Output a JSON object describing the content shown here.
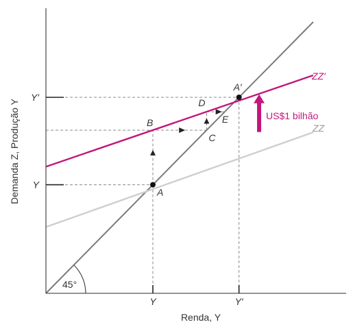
{
  "colors": {
    "axis": "#555555",
    "diag": "#7b7b7b",
    "zz": "#cfcfca",
    "zzp": "#c2177b",
    "dash": "#888888",
    "marker": "#222222"
  },
  "chart_data": {
    "type": "line",
    "xlabel": "Renda, Y",
    "ylabel": "Demanda Z, Produção Y",
    "xlim": [
      0,
      100
    ],
    "ylim": [
      0,
      100
    ],
    "xticks": [
      {
        "value": 36,
        "label": "Y"
      },
      {
        "value": 65,
        "label": "Y′"
      }
    ],
    "yticks": [
      {
        "value": 36,
        "label": "Y"
      },
      {
        "value": 65,
        "label": "Y′"
      }
    ],
    "series": [
      {
        "name": "",
        "role": "diagonal",
        "x": [
          0,
          90
        ],
        "y": [
          0,
          90
        ]
      },
      {
        "name": "ZZ",
        "x": [
          0,
          90
        ],
        "y": [
          22,
          53.4
        ]
      },
      {
        "name": "ZZ′",
        "x": [
          0,
          90
        ],
        "y": [
          42,
          72.3
        ]
      }
    ],
    "points": [
      {
        "label": "A",
        "x": 36,
        "y": 36
      },
      {
        "label": "A′",
        "x": 65,
        "y": 65
      }
    ],
    "steps": [
      {
        "label": "B",
        "x": 36,
        "y": 54.1
      },
      {
        "label": "C",
        "x": 54.1,
        "y": 54.1
      },
      {
        "label": "D",
        "x": 54.1,
        "y": 60.2
      },
      {
        "label": "E",
        "x": 60.2,
        "y": 60.2
      }
    ],
    "angle_label": "45°",
    "shift": {
      "label": "US$1 bilhão",
      "from": 53.5,
      "to": 66
    }
  }
}
